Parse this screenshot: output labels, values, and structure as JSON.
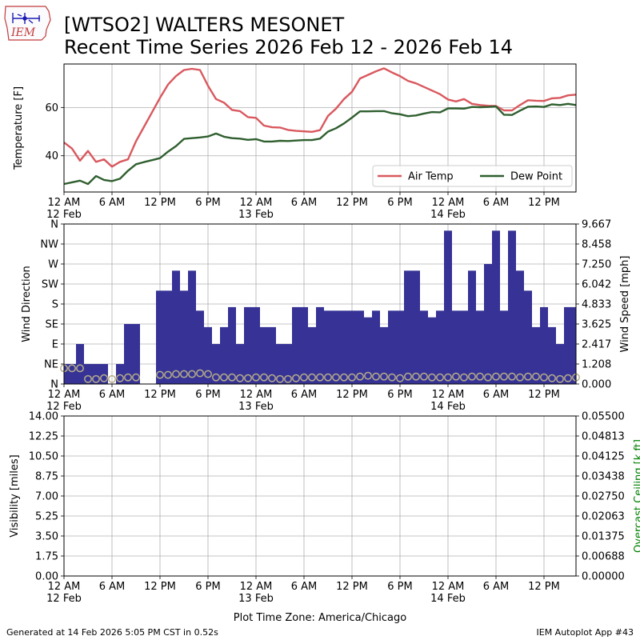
{
  "header": {
    "logo_text": "IEM",
    "title_line1": "[WTSO2] WALTERS MESONET",
    "title_line2": "Recent Time Series 2026 Feb 12 - 2026 Feb 14"
  },
  "footer": {
    "generated": "Generated at 14 Feb 2026 5:05 PM CST in 0.52s",
    "app": "IEM Autoplot App #43",
    "timezone": "Plot Time Zone: America/Chicago"
  },
  "colors": {
    "air_temp": "#d9585e",
    "dew_point": "#2f5f2f",
    "wind_bar": "#373396",
    "wind_speed_marker": "#b5ad8a",
    "ceiling_axis": "#008000",
    "grid": "#b0b0b0"
  },
  "time_axis": {
    "start_hour": 0,
    "end_hour": 64,
    "ticks": [
      {
        "hour": 0,
        "label": "12 AM",
        "date": "12 Feb"
      },
      {
        "hour": 6,
        "label": "6 AM",
        "date": ""
      },
      {
        "hour": 12,
        "label": "12 PM",
        "date": ""
      },
      {
        "hour": 18,
        "label": "6 PM",
        "date": ""
      },
      {
        "hour": 24,
        "label": "12 AM",
        "date": "13 Feb"
      },
      {
        "hour": 30,
        "label": "6 AM",
        "date": ""
      },
      {
        "hour": 36,
        "label": "12 PM",
        "date": ""
      },
      {
        "hour": 42,
        "label": "6 PM",
        "date": ""
      },
      {
        "hour": 48,
        "label": "12 AM",
        "date": "14 Feb"
      },
      {
        "hour": 54,
        "label": "6 AM",
        "date": ""
      },
      {
        "hour": 60,
        "label": "12 PM",
        "date": ""
      }
    ]
  },
  "chart_data": [
    {
      "type": "line",
      "ylabel": "Temperature [F]",
      "ylim": [
        25,
        78
      ],
      "yticks": [
        40,
        60
      ],
      "grid": true,
      "legend_position": "lower-right",
      "series": [
        {
          "name": "Air Temp",
          "color": "#d9585e",
          "x": [
            0,
            1,
            2,
            3,
            4,
            5,
            6,
            7,
            8,
            9,
            10,
            11,
            12,
            13,
            14,
            15,
            16,
            17,
            18,
            19,
            20,
            21,
            22,
            23,
            24,
            25,
            26,
            27,
            28,
            29,
            30,
            31,
            32,
            33,
            34,
            35,
            36,
            37,
            38,
            39,
            40,
            41,
            42,
            43,
            44,
            45,
            46,
            47,
            48,
            49,
            50,
            51,
            52,
            53,
            54,
            55,
            56,
            57,
            58,
            59,
            60,
            61,
            62,
            63,
            64
          ],
          "values": [
            45.5,
            43,
            38,
            42,
            37.5,
            38.5,
            35.5,
            37.5,
            38.5,
            46,
            52,
            58,
            64,
            69.5,
            73,
            75.5,
            76,
            75.5,
            69,
            63.5,
            62,
            59,
            58.5,
            56,
            55.7,
            52.5,
            51.8,
            51.7,
            50.7,
            50.3,
            50.1,
            49.9,
            50.6,
            56.5,
            59.5,
            63.5,
            66.5,
            72,
            73.5,
            75,
            76.2,
            74.5,
            73,
            71,
            70,
            68.5,
            67,
            65.5,
            63.3,
            62.5,
            63.5,
            61.5,
            61,
            60.7,
            60.6,
            58.8,
            58.8,
            61,
            63,
            62.8,
            62.7,
            63.8,
            64,
            65,
            65.3
          ]
        },
        {
          "name": "Dew Point",
          "color": "#2f5f2f",
          "x": [
            0,
            1,
            2,
            3,
            4,
            5,
            6,
            7,
            8,
            9,
            10,
            11,
            12,
            13,
            14,
            15,
            16,
            17,
            18,
            19,
            20,
            21,
            22,
            23,
            24,
            25,
            26,
            27,
            28,
            29,
            30,
            31,
            32,
            33,
            34,
            35,
            36,
            37,
            38,
            39,
            40,
            41,
            42,
            43,
            44,
            45,
            46,
            47,
            48,
            49,
            50,
            51,
            52,
            53,
            54,
            55,
            56,
            57,
            58,
            59,
            60,
            61,
            62,
            63,
            64
          ],
          "values": [
            28.3,
            29,
            29.7,
            28.3,
            31.6,
            30,
            29.5,
            30.5,
            33.8,
            36.5,
            37.4,
            38.2,
            39,
            41.7,
            44,
            47,
            47.3,
            47.6,
            48,
            49.2,
            47.9,
            47.3,
            47.1,
            46.6,
            46.9,
            45.9,
            45.9,
            46.2,
            46.1,
            46.3,
            46.5,
            46.5,
            47.1,
            50,
            51.4,
            53.4,
            55.8,
            58.4,
            58.4,
            58.5,
            58.5,
            57.6,
            57.2,
            56.4,
            56.7,
            57.5,
            58.1,
            58,
            59.6,
            59.6,
            59.5,
            60.2,
            60.1,
            60.2,
            60.4,
            57,
            56.9,
            58.7,
            60.3,
            60.4,
            60.2,
            61.3,
            61,
            61.5,
            61
          ]
        }
      ]
    },
    {
      "type": "bar",
      "ylabel": "Wind Direction",
      "y2label": "Wind Speed [mph]",
      "direction_labels": [
        "N",
        "NE",
        "E",
        "SE",
        "S",
        "SW",
        "W",
        "NW",
        "N"
      ],
      "direction_ylim": [
        0,
        360
      ],
      "speed_ylim": [
        0,
        9.667
      ],
      "speed_ticks": [
        "0.000",
        "1.208",
        "2.417",
        "3.625",
        "4.833",
        "6.042",
        "7.250",
        "8.458",
        "9.667"
      ],
      "grid": true,
      "series": [
        {
          "name": "Wind Direction",
          "color": "#373396",
          "x": [
            0,
            1,
            2,
            3,
            4,
            5,
            6,
            7,
            8,
            9,
            10,
            11,
            12,
            13,
            14,
            15,
            16,
            17,
            18,
            19,
            20,
            21,
            22,
            23,
            24,
            25,
            26,
            27,
            28,
            29,
            30,
            31,
            32,
            33,
            34,
            35,
            36,
            37,
            38,
            39,
            40,
            41,
            42,
            43,
            44,
            45,
            46,
            47,
            48,
            49,
            50,
            51,
            52,
            53,
            54,
            55,
            56,
            57,
            58,
            59,
            60,
            61,
            62,
            63,
            64
          ],
          "values": [
            45,
            45,
            90,
            45,
            45,
            45,
            null,
            45,
            135,
            135,
            null,
            null,
            210,
            210,
            255,
            210,
            255,
            165,
            128,
            90,
            128,
            173,
            90,
            173,
            173,
            128,
            128,
            90,
            90,
            173,
            173,
            128,
            173,
            165,
            165,
            165,
            165,
            165,
            150,
            165,
            128,
            165,
            165,
            255,
            255,
            165,
            150,
            165,
            345,
            165,
            165,
            255,
            165,
            270,
            345,
            165,
            345,
            255,
            210,
            128,
            173,
            128,
            90,
            173,
            173
          ]
        },
        {
          "name": "Wind Speed",
          "color": "#b5ad8a",
          "x": [
            0,
            1,
            2,
            3,
            4,
            5,
            6,
            7,
            8,
            9,
            10,
            11,
            12,
            13,
            14,
            15,
            16,
            17,
            18,
            19,
            20,
            21,
            22,
            23,
            24,
            25,
            26,
            27,
            28,
            29,
            30,
            31,
            32,
            33,
            34,
            35,
            36,
            37,
            38,
            39,
            40,
            41,
            42,
            43,
            44,
            45,
            46,
            47,
            48,
            49,
            50,
            51,
            52,
            53,
            54,
            55,
            56,
            57,
            58,
            59,
            60,
            61,
            62,
            63,
            64
          ],
          "values": [
            0.95,
            0.95,
            0.95,
            0.3,
            0.3,
            0.35,
            0.3,
            0.35,
            0.4,
            0.4,
            null,
            null,
            0.55,
            0.55,
            0.6,
            0.6,
            0.6,
            0.65,
            0.6,
            0.4,
            0.4,
            0.4,
            0.35,
            0.35,
            0.4,
            0.4,
            0.35,
            0.3,
            0.3,
            0.35,
            0.4,
            0.4,
            0.4,
            0.4,
            0.4,
            0.4,
            0.4,
            0.45,
            0.5,
            0.45,
            0.45,
            0.4,
            0.35,
            0.45,
            0.45,
            0.45,
            0.4,
            0.4,
            0.4,
            0.45,
            0.4,
            0.45,
            0.45,
            0.4,
            0.45,
            0.45,
            0.45,
            0.4,
            0.45,
            0.45,
            0.4,
            0.35,
            0.3,
            0.35,
            0.4
          ]
        }
      ]
    },
    {
      "type": "line",
      "ylabel": "Visibility [miles]",
      "y2label": "Overcast Ceiling [k ft]",
      "ylim": [
        0,
        14
      ],
      "yticks": [
        "0.00",
        "1.75",
        "3.50",
        "5.25",
        "7.00",
        "8.75",
        "10.50",
        "12.25",
        "14.00"
      ],
      "y2lim": [
        0,
        0.055
      ],
      "y2ticks": [
        "0.00000",
        "0.00688",
        "0.01375",
        "0.02063",
        "0.02750",
        "0.03438",
        "0.04125",
        "0.04813",
        "0.05500"
      ],
      "grid": true,
      "xlabel": "Plot Time Zone: America/Chicago",
      "series": []
    }
  ]
}
